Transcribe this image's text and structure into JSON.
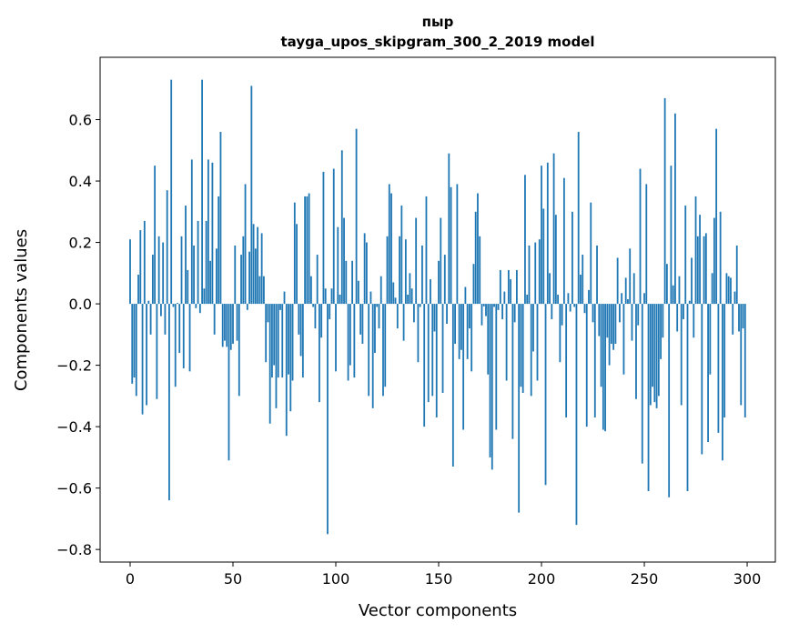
{
  "chart_data": {
    "type": "bar",
    "title_line1": "пыр",
    "title_line2": "tayga_upos_skipgram_300_2_2019 model",
    "xlabel": "Vector components",
    "ylabel": "Components values",
    "xlim": [
      -14.6,
      313.7
    ],
    "ylim": [
      -0.841,
      0.803
    ],
    "xticks": [
      0,
      50,
      100,
      150,
      200,
      250,
      300
    ],
    "xtick_labels": [
      "0",
      "50",
      "100",
      "150",
      "200",
      "250",
      "300"
    ],
    "yticks": [
      -0.8,
      -0.6,
      -0.4,
      -0.2,
      0.0,
      0.2,
      0.4,
      0.6
    ],
    "ytick_labels": [
      "−0.8",
      "−0.6",
      "−0.4",
      "−0.2",
      "0.0",
      "0.2",
      "0.4",
      "0.6"
    ],
    "grid": false,
    "bar_color": "#1f77b4",
    "values": [
      0.21,
      -0.26,
      -0.24,
      -0.3,
      0.095,
      0.24,
      -0.36,
      0.27,
      -0.33,
      0.01,
      -0.1,
      0.16,
      0.45,
      -0.31,
      0.22,
      -0.04,
      0.2,
      -0.1,
      0.37,
      -0.64,
      0.73,
      -0.01,
      -0.27,
      0.003,
      -0.16,
      0.22,
      -0.21,
      0.32,
      0.11,
      -0.22,
      0.47,
      0.19,
      -0.014,
      0.27,
      -0.03,
      0.73,
      0.05,
      0.27,
      0.47,
      0.14,
      0.46,
      -0.1,
      0.18,
      0.35,
      0.56,
      -0.14,
      -0.12,
      -0.14,
      -0.51,
      -0.15,
      -0.13,
      0.19,
      -0.12,
      -0.3,
      0.16,
      0.22,
      0.39,
      -0.02,
      0.17,
      0.71,
      0.26,
      0.18,
      0.25,
      0.09,
      0.23,
      0.09,
      -0.19,
      -0.06,
      -0.39,
      -0.24,
      -0.2,
      -0.34,
      -0.24,
      -0.02,
      -0.24,
      0.04,
      -0.43,
      -0.23,
      -0.35,
      -0.25,
      0.33,
      0.26,
      -0.1,
      -0.17,
      -0.24,
      0.35,
      0.35,
      0.36,
      0.09,
      -0.01,
      -0.08,
      0.16,
      -0.32,
      -0.11,
      0.43,
      0.05,
      -0.75,
      -0.05,
      0.05,
      0.44,
      -0.22,
      0.25,
      0.03,
      0.5,
      0.28,
      0.14,
      -0.25,
      -0.2,
      0.14,
      -0.24,
      0.57,
      0.075,
      -0.1,
      -0.13,
      0.23,
      0.2,
      -0.3,
      0.04,
      -0.34,
      -0.16,
      -0.01,
      -0.08,
      0.09,
      -0.3,
      -0.27,
      0.22,
      0.39,
      0.36,
      0.07,
      0.02,
      -0.08,
      0.22,
      0.32,
      -0.12,
      0.21,
      0.03,
      0.1,
      0.05,
      -0.06,
      0.28,
      -0.19,
      -0.01,
      0.19,
      -0.4,
      0.35,
      -0.32,
      0.08,
      -0.3,
      -0.09,
      -0.37,
      0.14,
      0.28,
      -0.29,
      0.16,
      -0.065,
      0.49,
      0.38,
      -0.53,
      -0.13,
      0.39,
      -0.18,
      -0.15,
      -0.41,
      0.055,
      -0.18,
      -0.08,
      -0.22,
      0.13,
      0.3,
      0.36,
      0.22,
      -0.07,
      -0.008,
      -0.04,
      -0.23,
      -0.5,
      -0.54,
      -0.01,
      -0.41,
      -0.02,
      0.11,
      -0.05,
      0.04,
      -0.25,
      0.11,
      0.08,
      -0.44,
      -0.06,
      0.11,
      -0.68,
      -0.27,
      -0.29,
      0.42,
      0.03,
      0.19,
      -0.3,
      -0.155,
      0.2,
      -0.25,
      0.21,
      0.45,
      0.31,
      -0.59,
      0.46,
      0.1,
      -0.05,
      0.49,
      0.29,
      0.03,
      -0.19,
      -0.07,
      0.41,
      -0.37,
      0.035,
      -0.025,
      0.3,
      -0.01,
      -0.72,
      0.56,
      0.095,
      0.16,
      -0.03,
      -0.4,
      0.045,
      0.33,
      -0.06,
      -0.37,
      0.19,
      -0.105,
      -0.27,
      -0.41,
      -0.415,
      -0.11,
      -0.2,
      -0.13,
      -0.15,
      -0.13,
      0.15,
      -0.06,
      0.035,
      -0.23,
      0.085,
      0.015,
      0.18,
      -0.12,
      0.1,
      -0.31,
      -0.07,
      0.44,
      -0.52,
      0.035,
      0.39,
      -0.61,
      -0.33,
      -0.27,
      -0.32,
      -0.34,
      -0.3,
      -0.18,
      -0.11,
      0.67,
      0.13,
      -0.63,
      0.45,
      0.06,
      0.62,
      -0.09,
      0.09,
      -0.33,
      -0.05,
      0.32,
      -0.61,
      0.01,
      0.15,
      -0.11,
      0.35,
      0.22,
      0.29,
      -0.49,
      0.22,
      0.23,
      -0.45,
      -0.23,
      0.1,
      0.28,
      0.57,
      -0.42,
      0.3,
      -0.51,
      -0.37,
      0.1,
      0.09,
      0.085,
      -0.1,
      0.04,
      0.19,
      -0.09,
      -0.33,
      -0.08,
      -0.37
    ]
  }
}
